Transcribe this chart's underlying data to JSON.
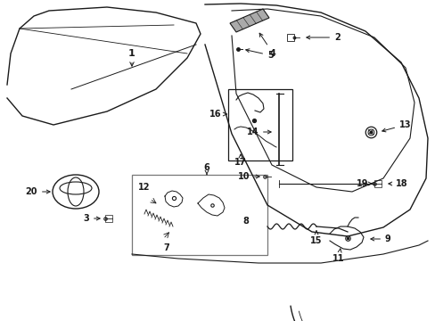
{
  "bg_color": "#ffffff",
  "line_color": "#1a1a1a",
  "figw": 4.89,
  "figh": 3.6,
  "dpi": 100,
  "xlim": [
    0,
    489
  ],
  "ylim": [
    0,
    360
  ]
}
